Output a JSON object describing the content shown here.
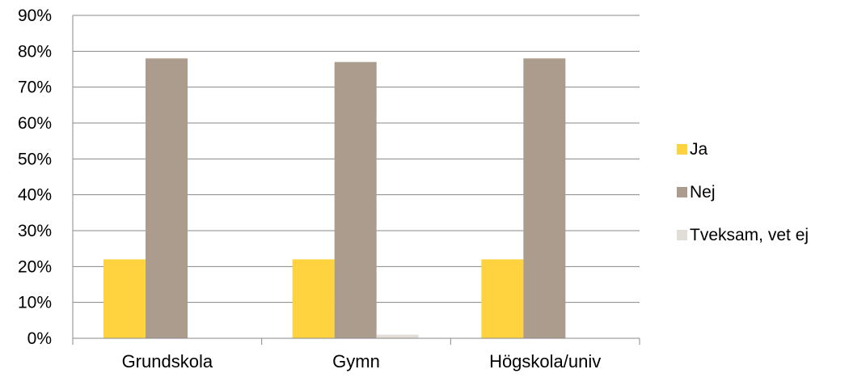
{
  "chart_data": {
    "type": "bar",
    "title": "",
    "xlabel": "",
    "ylabel": "",
    "categories": [
      "Grundskola",
      "Gymn",
      "Högskola/univ"
    ],
    "series": [
      {
        "name": "Ja",
        "color": "#FFD23F",
        "values": [
          22,
          22,
          22
        ]
      },
      {
        "name": "Nej",
        "color": "#AC9C8E",
        "values": [
          78,
          77,
          78
        ]
      },
      {
        "name": "Tveksam, vet ej",
        "color": "#E2DDD7",
        "values": [
          0,
          1,
          0
        ]
      }
    ],
    "ylim": [
      0,
      90
    ],
    "ytick_step": 10,
    "ytick_labels": [
      "0%",
      "10%",
      "20%",
      "30%",
      "40%",
      "50%",
      "60%",
      "70%",
      "80%",
      "90%"
    ],
    "grid": true,
    "legend_position": "right",
    "gridline_color": "#888888"
  }
}
